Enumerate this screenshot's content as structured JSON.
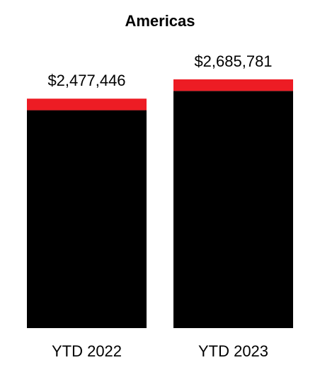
{
  "chart_data": {
    "type": "stacked-bar",
    "title": "Americas",
    "categories": [
      "YTD 2022",
      "YTD 2023"
    ],
    "series": [
      {
        "color": "#000000",
        "values": [
          2352446,
          2560781
        ]
      },
      {
        "color": "#ed1c24",
        "values": [
          125000,
          125000
        ]
      }
    ],
    "totals": [
      2477446,
      2685781
    ],
    "total_labels": [
      "$2,477,446",
      "$2,685,781"
    ]
  }
}
